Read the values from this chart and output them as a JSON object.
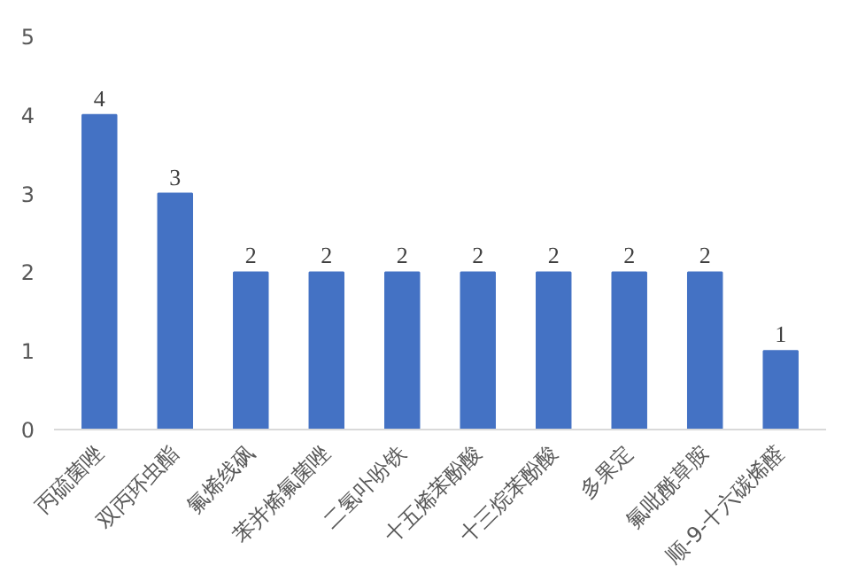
{
  "chart_data": {
    "type": "bar",
    "categories": [
      "丙硫菌唑",
      "双丙环虫酯",
      "氟烯线砜",
      "苯并烯氟菌唑",
      "二氢卟吩铁",
      "十五烯苯酚酸",
      "十三烷苯酚酸",
      "多果定",
      "氟吡酰草胺",
      "顺-9-十六碳烯醛"
    ],
    "values": [
      4,
      3,
      2,
      2,
      2,
      2,
      2,
      2,
      2,
      1
    ],
    "color": "#4472c4",
    "ylim": [
      0,
      5
    ],
    "yticks": [
      0,
      1,
      2,
      3,
      4,
      5
    ],
    "grid": false,
    "data_labels": true
  }
}
